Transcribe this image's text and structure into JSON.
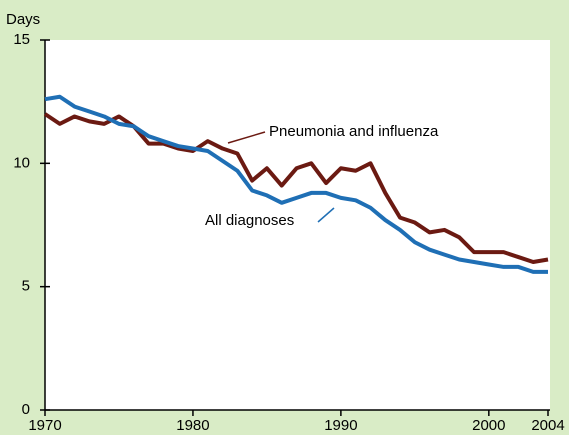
{
  "chart_data": {
    "type": "line",
    "ylabel": "Days",
    "x": [
      1970,
      1971,
      1972,
      1973,
      1974,
      1975,
      1976,
      1977,
      1978,
      1979,
      1980,
      1981,
      1982,
      1983,
      1984,
      1985,
      1986,
      1987,
      1988,
      1989,
      1990,
      1991,
      1992,
      1993,
      1994,
      1995,
      1996,
      1997,
      1998,
      1999,
      2000,
      2001,
      2002,
      2003,
      2004
    ],
    "series": [
      {
        "name": "Pneumonia and influenza",
        "color": "#6b1a12",
        "values": [
          12.0,
          11.6,
          11.9,
          11.7,
          11.6,
          11.9,
          11.5,
          10.8,
          10.8,
          10.6,
          10.5,
          10.9,
          10.6,
          10.4,
          9.3,
          9.8,
          9.1,
          9.8,
          10.0,
          9.2,
          9.8,
          9.7,
          10.0,
          8.8,
          7.8,
          7.6,
          7.2,
          7.3,
          7.0,
          6.4,
          6.4,
          6.4,
          6.2,
          6.0,
          6.1
        ]
      },
      {
        "name": "All diagnoses",
        "color": "#1f6fb5",
        "values": [
          12.6,
          12.7,
          12.3,
          12.1,
          11.9,
          11.6,
          11.5,
          11.1,
          10.9,
          10.7,
          10.6,
          10.5,
          10.1,
          9.7,
          8.9,
          8.7,
          8.4,
          8.6,
          8.8,
          8.8,
          8.6,
          8.5,
          8.2,
          7.7,
          7.3,
          6.8,
          6.5,
          6.3,
          6.1,
          6.0,
          5.9,
          5.8,
          5.8,
          5.6,
          5.6
        ]
      }
    ],
    "xlim": [
      1970,
      2004
    ],
    "xticks": [
      1970,
      1980,
      1990,
      2000,
      2004
    ],
    "ylim": [
      0,
      15
    ],
    "yticks": [
      0,
      5,
      10,
      15
    ]
  }
}
